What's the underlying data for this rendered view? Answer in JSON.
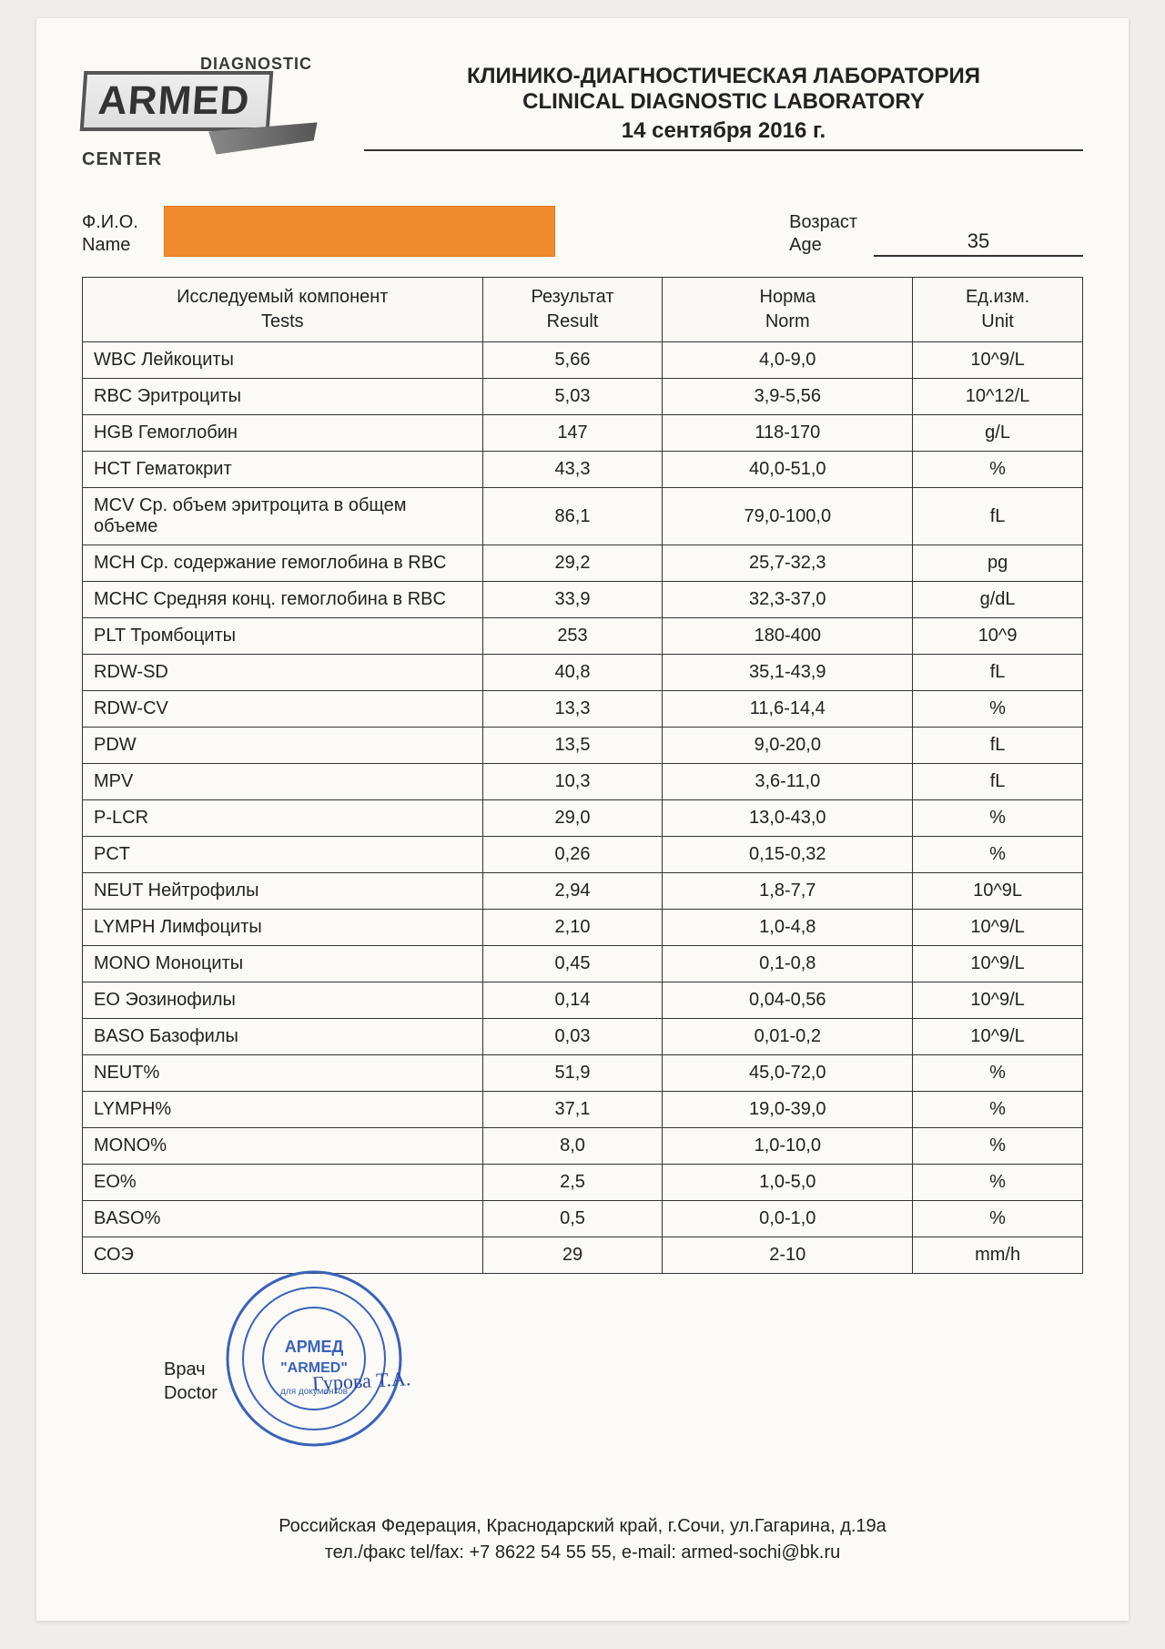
{
  "logo": {
    "top": "DIAGNOSTIC",
    "main": "ARMED",
    "bottom": "CENTER"
  },
  "title": {
    "line1": "КЛИНИКО-ДИАГНОСТИЧЕСКАЯ ЛАБОРАТОРИЯ",
    "line2": "CLINICAL DIAGNOSTIC LABORATORY",
    "date": "14 сентября 2016 г."
  },
  "labels": {
    "fio_ru": "Ф.И.О.",
    "fio_en": "Name",
    "age_ru": "Возраст",
    "age_en": "Age",
    "doctor_ru": "Врач",
    "doctor_en": "Doctor"
  },
  "patient": {
    "age": "35"
  },
  "columns": {
    "test_ru": "Исследуемый компонент",
    "test_en": "Tests",
    "result_ru": "Результат",
    "result_en": "Result",
    "norm_ru": "Норма",
    "norm_en": "Norm",
    "unit_ru": "Ед.изм.",
    "unit_en": "Unit"
  },
  "rows": [
    {
      "test": "WBC Лейкоциты",
      "result": "5,66",
      "norm": "4,0-9,0",
      "unit": "10^9/L"
    },
    {
      "test": "RBC Эритроциты",
      "result": "5,03",
      "norm": "3,9-5,56",
      "unit": "10^12/L"
    },
    {
      "test": "HGB Гемоглобин",
      "result": "147",
      "norm": "118-170",
      "unit": "g/L"
    },
    {
      "test": "HCT Гематокрит",
      "result": "43,3",
      "norm": "40,0-51,0",
      "unit": "%"
    },
    {
      "test": "MCV Ср. объем эритроцита в общем объеме",
      "result": "86,1",
      "norm": "79,0-100,0",
      "unit": "fL"
    },
    {
      "test": "MCH Ср. содержание гемоглобина в RBC",
      "result": "29,2",
      "norm": "25,7-32,3",
      "unit": "pg"
    },
    {
      "test": "MCHC Средняя конц. гемоглобина в RBC",
      "result": "33,9",
      "norm": "32,3-37,0",
      "unit": "g/dL"
    },
    {
      "test": "PLT Тромбоциты",
      "result": "253",
      "norm": "180-400",
      "unit": "10^9"
    },
    {
      "test": "RDW-SD",
      "result": "40,8",
      "norm": "35,1-43,9",
      "unit": "fL"
    },
    {
      "test": "RDW-CV",
      "result": "13,3",
      "norm": "11,6-14,4",
      "unit": "%"
    },
    {
      "test": "PDW",
      "result": "13,5",
      "norm": "9,0-20,0",
      "unit": "fL"
    },
    {
      "test": "MPV",
      "result": "10,3",
      "norm": "3,6-11,0",
      "unit": "fL"
    },
    {
      "test": "P-LCR",
      "result": "29,0",
      "norm": "13,0-43,0",
      "unit": "%"
    },
    {
      "test": "PCT",
      "result": "0,26",
      "norm": "0,15-0,32",
      "unit": "%"
    },
    {
      "test": "NEUT Нейтрофилы",
      "result": "2,94",
      "norm": "1,8-7,7",
      "unit": "10^9L"
    },
    {
      "test": "LYMPH Лимфоциты",
      "result": "2,10",
      "norm": "1,0-4,8",
      "unit": "10^9/L"
    },
    {
      "test": "MONO Моноциты",
      "result": "0,45",
      "norm": "0,1-0,8",
      "unit": "10^9/L"
    },
    {
      "test": "EO Эозинофилы",
      "result": "0,14",
      "norm": "0,04-0,56",
      "unit": "10^9/L"
    },
    {
      "test": "BASO Базофилы",
      "result": "0,03",
      "norm": "0,01-0,2",
      "unit": "10^9/L"
    },
    {
      "test": "NEUT%",
      "result": "51,9",
      "norm": "45,0-72,0",
      "unit": "%"
    },
    {
      "test": "LYMPH%",
      "result": "37,1",
      "norm": "19,0-39,0",
      "unit": "%"
    },
    {
      "test": "MONO%",
      "result": "8,0",
      "norm": "1,0-10,0",
      "unit": "%"
    },
    {
      "test": "EO%",
      "result": "2,5",
      "norm": "1,0-5,0",
      "unit": "%"
    },
    {
      "test": "BASO%",
      "result": "0,5",
      "norm": "0,0-1,0",
      "unit": "%"
    },
    {
      "test": "СОЭ",
      "result": "29",
      "norm": "2-10",
      "unit": "mm/h"
    }
  ],
  "doctor": {
    "signature": "Гурова Т.А.",
    "stamp_inner": "\"ARMED\""
  },
  "footer": {
    "line1": "Российская Федерация, Краснодарский край, г.Сочи, ул.Гагарина, д.19а",
    "line2": "тел./факс tel/fax: +7 8622 54 55 55, e-mail: armed-sochi@bk.ru"
  },
  "style": {
    "redaction_color": "#f08a2e",
    "stamp_color": "#3a62b8",
    "border_color": "#333333"
  }
}
